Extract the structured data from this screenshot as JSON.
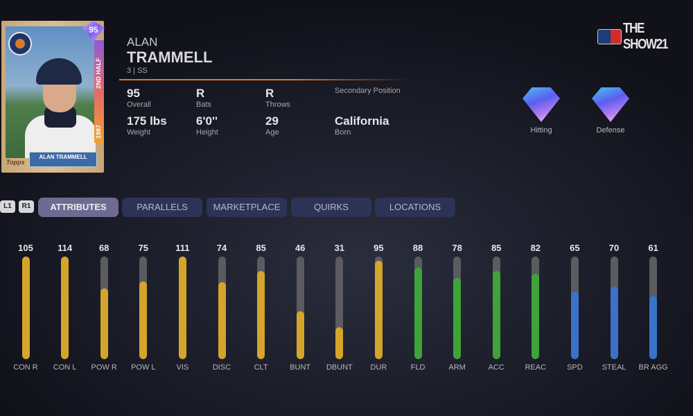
{
  "card": {
    "overall": "95",
    "year": "1987",
    "series": "2ND HALF",
    "nameplate": "ALAN TRAMMELL",
    "brand": "Topps"
  },
  "player": {
    "first_name": "ALAN",
    "last_name": "TRAMMELL",
    "position_line": "3 | SS"
  },
  "stats": [
    {
      "value": "95",
      "label": "Overall"
    },
    {
      "value": "R",
      "label": "Bats"
    },
    {
      "value": "R",
      "label": "Throws"
    },
    {
      "value": "",
      "label": "Secondary Position"
    },
    {
      "value": "175 lbs",
      "label": "Weight"
    },
    {
      "value": "6'0''",
      "label": "Height"
    },
    {
      "value": "29",
      "label": "Age"
    },
    {
      "value": "California",
      "label": "Born"
    }
  ],
  "logo": "THE SHOW21",
  "gems": [
    {
      "label": "Hitting"
    },
    {
      "label": "Defense"
    }
  ],
  "bumpers": [
    "L1",
    "R1"
  ],
  "tabs": [
    {
      "label": "ATTRIBUTES",
      "active": true
    },
    {
      "label": "PARALLELS"
    },
    {
      "label": "MARKETPLACE"
    },
    {
      "label": "QUIRKS"
    },
    {
      "label": "LOCATIONS"
    }
  ],
  "colors": {
    "hitting": "#d4a52a",
    "defense": "#3fa33a",
    "running": "#3b72c9"
  },
  "attribute_scale_max": 99,
  "attributes": [
    {
      "label": "CON R",
      "value": 105,
      "group": "hitting"
    },
    {
      "label": "CON L",
      "value": 114,
      "group": "hitting"
    },
    {
      "label": "POW R",
      "value": 68,
      "group": "hitting"
    },
    {
      "label": "POW L",
      "value": 75,
      "group": "hitting"
    },
    {
      "label": "VIS",
      "value": 111,
      "group": "hitting"
    },
    {
      "label": "DISC",
      "value": 74,
      "group": "hitting"
    },
    {
      "label": "CLT",
      "value": 85,
      "group": "hitting"
    },
    {
      "label": "BUNT",
      "value": 46,
      "group": "hitting"
    },
    {
      "label": "DBUNT",
      "value": 31,
      "group": "hitting"
    },
    {
      "label": "DUR",
      "value": 95,
      "group": "hitting"
    },
    {
      "label": "FLD",
      "value": 88,
      "group": "defense"
    },
    {
      "label": "ARM",
      "value": 78,
      "group": "defense"
    },
    {
      "label": "ACC",
      "value": 85,
      "group": "defense"
    },
    {
      "label": "REAC",
      "value": 82,
      "group": "defense"
    },
    {
      "label": "SPD",
      "value": 65,
      "group": "running"
    },
    {
      "label": "STEAL",
      "value": 70,
      "group": "running"
    },
    {
      "label": "BR AGG",
      "value": 61,
      "group": "running"
    }
  ]
}
